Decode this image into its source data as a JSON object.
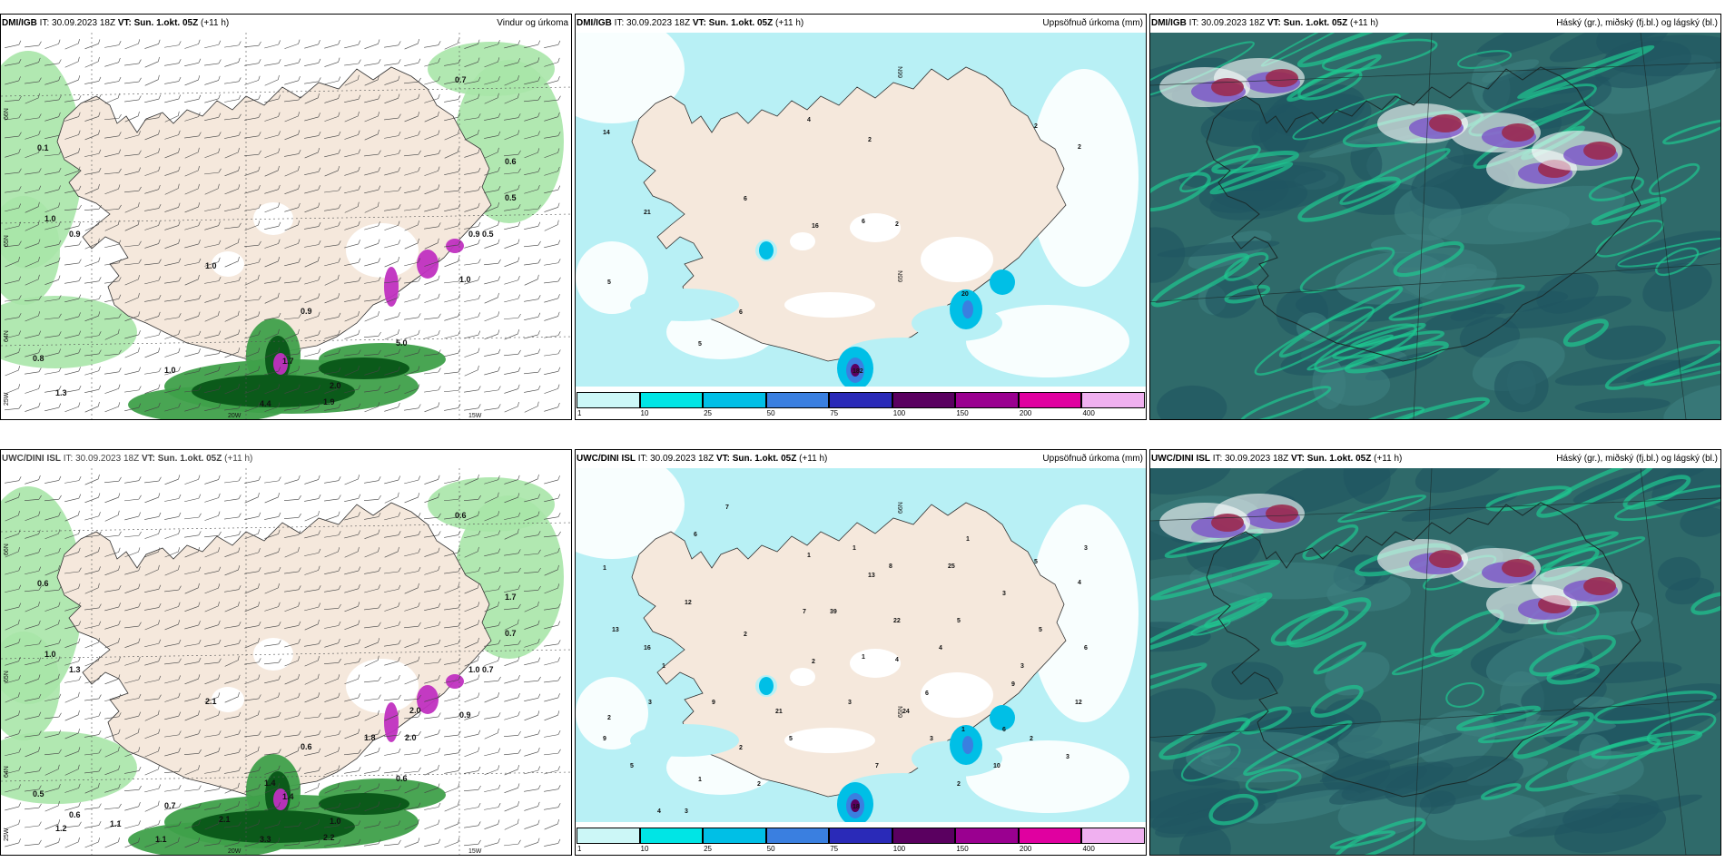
{
  "panels": [
    {
      "id": "dmi-wind",
      "title_model": "DMI/IGB",
      "title_it": "IT: 30.09.2023 18Z",
      "title_vt": "VT: Sun. 1.okt. 05Z",
      "title_lead": "(+11 h)",
      "title_right": "Vindur og úrkoma",
      "type": "wind",
      "labels": [
        "0.7",
        "0.1",
        "1.0",
        "0.9",
        "1.0",
        "0.6",
        "0.5",
        "0.5",
        "0.9",
        "1.0",
        "0.9",
        "5.0",
        "0.8",
        "1.0",
        "2.0",
        "1.3",
        "4.4",
        "1.9",
        "1.7"
      ],
      "axis_labels": [
        "66N",
        "65N",
        "64N",
        "25W",
        "20W",
        "15W"
      ]
    },
    {
      "id": "dmi-precip",
      "title_model": "DMI/IGB",
      "title_it": "IT: 30.09.2023 18Z",
      "title_vt": "VT: Sun. 1.okt. 05Z",
      "title_lead": "(+11 h)",
      "title_right": "Uppsöfnuð úrkoma (mm)",
      "type": "precip",
      "labels": [
        "14",
        "4",
        "2",
        "2",
        "2",
        "21",
        "6",
        "16",
        "6",
        "2",
        "5",
        "6",
        "5",
        "20",
        "182"
      ],
      "axis_labels": [
        "66N",
        "65N"
      ]
    },
    {
      "id": "dmi-cloud",
      "title_model": "DMI/IGB",
      "title_it": "IT: 30.09.2023 18Z",
      "title_vt": "VT: Sun. 1.okt. 05Z",
      "title_lead": "(+11 h)",
      "title_right": "Háský (gr.), miðský (fj.bl.) og lágský (bl.)",
      "type": "cloud"
    },
    {
      "id": "uwc-wind",
      "title_model": "UWC/DINI ISL",
      "title_it": "IT: 30.09.2023 18Z",
      "title_vt": "VT: Sun. 1.okt. 05Z",
      "title_lead": "(+11 h)",
      "title_right": "",
      "type": "wind",
      "labels": [
        "0.6",
        "0.6",
        "1.0",
        "1.3",
        "2.1",
        "1.7",
        "0.7",
        "0.7",
        "1.0",
        "0.9",
        "0.6",
        "0.6",
        "0.5",
        "0.7",
        "1.0",
        "1.2",
        "3.3",
        "2.2",
        "1.4",
        "1.4",
        "1.8",
        "2.0",
        "2.0",
        "2.1",
        "1.1",
        "1.1",
        "0.6"
      ],
      "axis_labels": [
        "66N",
        "65N",
        "64N",
        "25W",
        "20W",
        "15W"
      ]
    },
    {
      "id": "uwc-precip",
      "title_model": "UWC/DINI ISL",
      "title_it": "IT: 30.09.2023 18Z",
      "title_vt": "VT: Sun. 1.okt. 05Z",
      "title_lead": "(+11 h)",
      "title_right": "Uppsöfnuð úrkoma (mm)",
      "type": "precip",
      "labels": [
        "1",
        "1",
        "13",
        "5",
        "4",
        "16",
        "2",
        "2",
        "1",
        "4",
        "2",
        "2",
        "1",
        "1",
        "18",
        "7",
        "6",
        "13",
        "1",
        "1",
        "8",
        "3",
        "3",
        "12",
        "6",
        "7",
        "5",
        "5",
        "10",
        "3",
        "21",
        "7",
        "4",
        "6",
        "5",
        "3",
        "2",
        "25",
        "12",
        "3",
        "6",
        "2",
        "39",
        "22",
        "5",
        "2",
        "1",
        "3",
        "9",
        "4",
        "3",
        "24",
        "9",
        "9",
        "3"
      ],
      "axis_labels": [
        "66N",
        "65N"
      ]
    },
    {
      "id": "uwc-cloud",
      "title_model": "UWC/DINI ISL",
      "title_it": "IT: 30.09.2023 18Z",
      "title_vt": "VT: Sun. 1.okt. 05Z",
      "title_lead": "(+11 h)",
      "title_right": "Háský (gr.), miðský (fj.bl.) og lágský (bl.)",
      "type": "cloud"
    }
  ],
  "colorbar": {
    "levels": [
      "1",
      "10",
      "25",
      "50",
      "75",
      "100",
      "150",
      "200",
      "400"
    ],
    "colors": [
      "#ccf7f7",
      "#00e5e5",
      "#00bfe6",
      "#3a7fe0",
      "#2a2ab8",
      "#5a0060",
      "#9a0090",
      "#e000a0",
      "#f0b0f0"
    ]
  },
  "colors": {
    "land": "#f5e8dc",
    "sea_wind": "#ffffff",
    "rain_light": "#a8e6a8",
    "rain_mid": "#3fa04a",
    "rain_heavy": "#0b5a1a",
    "rain_extreme": "#c030c0",
    "precip_sea": "#b8f0f5",
    "cloud_base": "#2f6a6a",
    "cloud_high": "#1ec890",
    "cloud_mid": "#7b52c8",
    "cloud_low": "#9a2b50"
  }
}
